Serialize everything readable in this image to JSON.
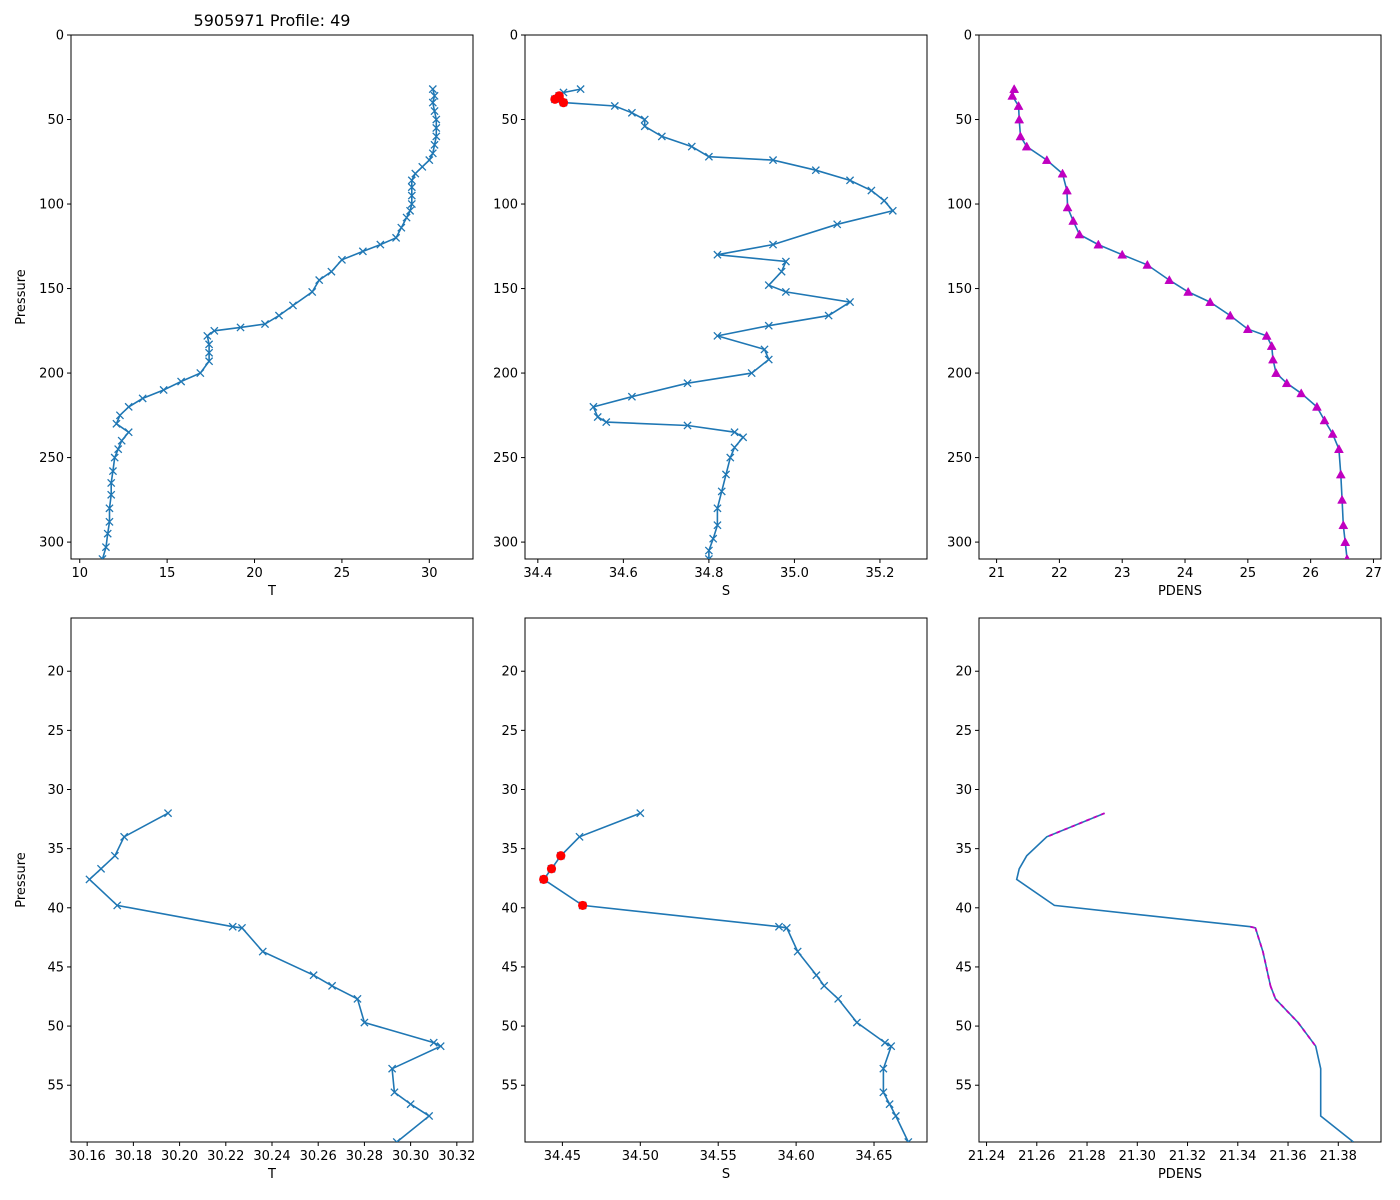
{
  "figure_title": "5905971 Profile: 49",
  "colors": {
    "line": "#1f77b4",
    "flag": "#ff0000",
    "density": "#c000c0",
    "frame": "#000000"
  },
  "chart_data": [
    {
      "id": "t-full",
      "type": "line",
      "title": "5905971 Profile: 49",
      "xlabel": "T",
      "ylabel": "Pressure",
      "xlim": [
        9.5,
        32.5
      ],
      "ylim": [
        310,
        0
      ],
      "y_inverted": true,
      "xticks": [
        10,
        15,
        20,
        25,
        30
      ],
      "xtick_labels": [
        "10",
        "15",
        "20",
        "25",
        "30"
      ],
      "yticks": [
        0,
        50,
        100,
        150,
        200,
        250,
        300
      ],
      "ytick_labels": [
        "0",
        "50",
        "100",
        "150",
        "200",
        "250",
        "300"
      ],
      "marker": "x",
      "points": [
        [
          30.2,
          32
        ],
        [
          30.3,
          36
        ],
        [
          30.2,
          40
        ],
        [
          30.3,
          45
        ],
        [
          30.4,
          50
        ],
        [
          30.4,
          55
        ],
        [
          30.4,
          60
        ],
        [
          30.3,
          65
        ],
        [
          30.2,
          70
        ],
        [
          30.0,
          74
        ],
        [
          29.6,
          78
        ],
        [
          29.2,
          82
        ],
        [
          29.0,
          86
        ],
        [
          29.0,
          90
        ],
        [
          29.0,
          95
        ],
        [
          29.0,
          100
        ],
        [
          28.9,
          104
        ],
        [
          28.7,
          108
        ],
        [
          28.4,
          114
        ],
        [
          28.1,
          120
        ],
        [
          27.2,
          124
        ],
        [
          26.2,
          128
        ],
        [
          25.0,
          133
        ],
        [
          24.4,
          140
        ],
        [
          23.7,
          145
        ],
        [
          23.3,
          152
        ],
        [
          22.2,
          160
        ],
        [
          21.4,
          166
        ],
        [
          20.6,
          171
        ],
        [
          19.2,
          173
        ],
        [
          17.7,
          175
        ],
        [
          17.3,
          178
        ],
        [
          17.4,
          183
        ],
        [
          17.4,
          188
        ],
        [
          17.4,
          193
        ],
        [
          16.9,
          200
        ],
        [
          15.8,
          205
        ],
        [
          14.8,
          210
        ],
        [
          13.6,
          215
        ],
        [
          12.8,
          220
        ],
        [
          12.3,
          225
        ],
        [
          12.1,
          230
        ],
        [
          12.8,
          235
        ],
        [
          12.4,
          240
        ],
        [
          12.2,
          245
        ],
        [
          12.0,
          250
        ],
        [
          11.9,
          258
        ],
        [
          11.8,
          265
        ],
        [
          11.8,
          272
        ],
        [
          11.7,
          280
        ],
        [
          11.7,
          288
        ],
        [
          11.6,
          295
        ],
        [
          11.5,
          303
        ],
        [
          11.3,
          310
        ]
      ]
    },
    {
      "id": "s-full",
      "type": "line",
      "title": "",
      "xlabel": "S",
      "ylabel": "",
      "xlim": [
        34.37,
        35.31
      ],
      "ylim": [
        310,
        0
      ],
      "y_inverted": true,
      "xticks": [
        34.4,
        34.6,
        34.8,
        35.0,
        35.2
      ],
      "xtick_labels": [
        "34.4",
        "34.6",
        "34.8",
        "35.0",
        "35.2"
      ],
      "yticks": [
        0,
        50,
        100,
        150,
        200,
        250,
        300
      ],
      "ytick_labels": [
        "0",
        "50",
        "100",
        "150",
        "200",
        "250",
        "300"
      ],
      "marker": "x",
      "points": [
        [
          34.5,
          32
        ],
        [
          34.46,
          34
        ],
        [
          34.45,
          36
        ],
        [
          34.44,
          38
        ],
        [
          34.46,
          40
        ],
        [
          34.58,
          42
        ],
        [
          34.62,
          46
        ],
        [
          34.65,
          50
        ],
        [
          34.65,
          54
        ],
        [
          34.69,
          60
        ],
        [
          34.76,
          66
        ],
        [
          34.8,
          72
        ],
        [
          34.95,
          74
        ],
        [
          35.05,
          80
        ],
        [
          35.13,
          86
        ],
        [
          35.18,
          92
        ],
        [
          35.21,
          98
        ],
        [
          35.23,
          104
        ],
        [
          35.1,
          112
        ],
        [
          34.95,
          124
        ],
        [
          34.82,
          130
        ],
        [
          34.98,
          134
        ],
        [
          34.97,
          140
        ],
        [
          34.94,
          148
        ],
        [
          34.98,
          152
        ],
        [
          35.13,
          158
        ],
        [
          35.08,
          166
        ],
        [
          34.94,
          172
        ],
        [
          34.82,
          178
        ],
        [
          34.93,
          186
        ],
        [
          34.94,
          192
        ],
        [
          34.9,
          200
        ],
        [
          34.75,
          206
        ],
        [
          34.62,
          214
        ],
        [
          34.53,
          220
        ],
        [
          34.54,
          226
        ],
        [
          34.56,
          229
        ],
        [
          34.75,
          231
        ],
        [
          34.86,
          235
        ],
        [
          34.88,
          238
        ],
        [
          34.86,
          244
        ],
        [
          34.85,
          250
        ],
        [
          34.84,
          260
        ],
        [
          34.83,
          270
        ],
        [
          34.82,
          280
        ],
        [
          34.82,
          290
        ],
        [
          34.81,
          298
        ],
        [
          34.8,
          305
        ],
        [
          34.8,
          310
        ]
      ],
      "flagged_points": [
        [
          34.44,
          38
        ],
        [
          34.45,
          37
        ],
        [
          34.45,
          36
        ],
        [
          34.46,
          40
        ]
      ]
    },
    {
      "id": "pdens-full",
      "type": "line",
      "title": "",
      "xlabel": "PDENS",
      "ylabel": "",
      "xlim": [
        20.72,
        27.12
      ],
      "ylim": [
        310,
        0
      ],
      "y_inverted": true,
      "xticks": [
        21,
        22,
        23,
        24,
        25,
        26,
        27
      ],
      "xtick_labels": [
        "21",
        "22",
        "23",
        "24",
        "25",
        "26",
        "27"
      ],
      "yticks": [
        0,
        50,
        100,
        150,
        200,
        250,
        300
      ],
      "ytick_labels": [
        "0",
        "50",
        "100",
        "150",
        "200",
        "250",
        "300"
      ],
      "marker": "triangle",
      "points": [
        [
          21.28,
          32
        ],
        [
          21.25,
          36
        ],
        [
          21.35,
          42
        ],
        [
          21.36,
          50
        ],
        [
          21.38,
          60
        ],
        [
          21.48,
          66
        ],
        [
          21.8,
          74
        ],
        [
          22.05,
          82
        ],
        [
          22.12,
          92
        ],
        [
          22.13,
          102
        ],
        [
          22.22,
          110
        ],
        [
          22.32,
          118
        ],
        [
          22.62,
          124
        ],
        [
          23.0,
          130
        ],
        [
          23.4,
          136
        ],
        [
          23.75,
          145
        ],
        [
          24.05,
          152
        ],
        [
          24.4,
          158
        ],
        [
          24.72,
          166
        ],
        [
          25.0,
          174
        ],
        [
          25.3,
          178
        ],
        [
          25.38,
          184
        ],
        [
          25.4,
          192
        ],
        [
          25.45,
          200
        ],
        [
          25.62,
          206
        ],
        [
          25.85,
          212
        ],
        [
          26.1,
          220
        ],
        [
          26.22,
          228
        ],
        [
          26.35,
          236
        ],
        [
          26.45,
          245
        ],
        [
          26.48,
          260
        ],
        [
          26.5,
          275
        ],
        [
          26.52,
          290
        ],
        [
          26.55,
          300
        ],
        [
          26.58,
          310
        ]
      ]
    },
    {
      "id": "t-zoom",
      "type": "line",
      "title": "",
      "xlabel": "T",
      "ylabel": "Pressure",
      "xlim": [
        30.153,
        30.327
      ],
      "ylim": [
        59.8,
        15.5
      ],
      "y_inverted": true,
      "xticks": [
        30.16,
        30.18,
        30.2,
        30.22,
        30.24,
        30.26,
        30.28,
        30.3,
        30.32
      ],
      "xtick_labels": [
        "30.16",
        "30.18",
        "30.20",
        "30.22",
        "30.24",
        "30.26",
        "30.28",
        "30.30",
        "30.32"
      ],
      "yticks": [
        20,
        25,
        30,
        35,
        40,
        45,
        50,
        55
      ],
      "ytick_labels": [
        "20",
        "25",
        "30",
        "35",
        "40",
        "45",
        "50",
        "55"
      ],
      "marker": "x",
      "points": [
        [
          30.195,
          32.0
        ],
        [
          30.176,
          34.0
        ],
        [
          30.172,
          35.6
        ],
        [
          30.166,
          36.7
        ],
        [
          30.161,
          37.6
        ],
        [
          30.173,
          39.8
        ],
        [
          30.223,
          41.6
        ],
        [
          30.227,
          41.7
        ],
        [
          30.236,
          43.7
        ],
        [
          30.258,
          45.7
        ],
        [
          30.266,
          46.6
        ],
        [
          30.277,
          47.7
        ],
        [
          30.28,
          49.7
        ],
        [
          30.31,
          51.4
        ],
        [
          30.313,
          51.7
        ],
        [
          30.292,
          53.6
        ],
        [
          30.293,
          55.6
        ],
        [
          30.3,
          56.6
        ],
        [
          30.308,
          57.6
        ],
        [
          30.294,
          59.8
        ]
      ]
    },
    {
      "id": "s-zoom",
      "type": "line",
      "title": "",
      "xlabel": "S",
      "ylabel": "",
      "xlim": [
        34.426,
        34.684
      ],
      "ylim": [
        59.8,
        15.5
      ],
      "y_inverted": true,
      "xticks": [
        34.45,
        34.5,
        34.55,
        34.6,
        34.65
      ],
      "xtick_labels": [
        "34.45",
        "34.50",
        "34.55",
        "34.60",
        "34.65"
      ],
      "yticks": [
        20,
        25,
        30,
        35,
        40,
        45,
        50,
        55
      ],
      "ytick_labels": [
        "20",
        "25",
        "30",
        "35",
        "40",
        "45",
        "50",
        "55"
      ],
      "marker": "x",
      "points": [
        [
          34.5,
          32.0
        ],
        [
          34.461,
          34.0
        ],
        [
          34.449,
          35.6
        ],
        [
          34.443,
          36.7
        ],
        [
          34.438,
          37.6
        ],
        [
          34.463,
          39.8
        ],
        [
          34.589,
          41.6
        ],
        [
          34.594,
          41.7
        ],
        [
          34.601,
          43.7
        ],
        [
          34.613,
          45.7
        ],
        [
          34.618,
          46.6
        ],
        [
          34.627,
          47.7
        ],
        [
          34.639,
          49.7
        ],
        [
          34.657,
          51.4
        ],
        [
          34.661,
          51.7
        ],
        [
          34.656,
          53.6
        ],
        [
          34.656,
          55.6
        ],
        [
          34.66,
          56.6
        ],
        [
          34.664,
          57.6
        ],
        [
          34.672,
          59.8
        ]
      ],
      "flagged_points": [
        [
          34.449,
          35.6
        ],
        [
          34.443,
          36.7
        ],
        [
          34.438,
          37.6
        ],
        [
          34.463,
          39.8
        ]
      ]
    },
    {
      "id": "pdens-zoom",
      "type": "line",
      "title": "",
      "xlabel": "PDENS",
      "ylabel": "",
      "xlim": [
        21.237,
        21.397
      ],
      "ylim": [
        59.8,
        15.5
      ],
      "y_inverted": true,
      "xticks": [
        21.24,
        21.26,
        21.28,
        21.3,
        21.32,
        21.34,
        21.36,
        21.38
      ],
      "xtick_labels": [
        "21.24",
        "21.26",
        "21.28",
        "21.30",
        "21.32",
        "21.34",
        "21.36",
        "21.38"
      ],
      "yticks": [
        20,
        25,
        30,
        35,
        40,
        45,
        50,
        55
      ],
      "ytick_labels": [
        "20",
        "25",
        "30",
        "35",
        "40",
        "45",
        "50",
        "55"
      ],
      "marker": "none",
      "points": [
        [
          21.287,
          32.0
        ],
        [
          21.264,
          34.0
        ],
        [
          21.256,
          35.6
        ],
        [
          21.253,
          36.7
        ],
        [
          21.252,
          37.6
        ],
        [
          21.267,
          39.8
        ],
        [
          21.345,
          41.6
        ],
        [
          21.347,
          41.7
        ],
        [
          21.35,
          43.7
        ],
        [
          21.353,
          46.6
        ],
        [
          21.355,
          47.7
        ],
        [
          21.364,
          49.7
        ],
        [
          21.371,
          51.7
        ],
        [
          21.373,
          53.6
        ],
        [
          21.373,
          55.6
        ],
        [
          21.373,
          57.6
        ],
        [
          21.386,
          59.8
        ]
      ],
      "dashed_segments": [
        [
          0,
          1
        ],
        [
          6,
          7
        ],
        [
          7,
          8
        ],
        [
          8,
          9
        ],
        [
          9,
          10
        ],
        [
          10,
          11
        ],
        [
          11,
          12
        ]
      ]
    }
  ]
}
